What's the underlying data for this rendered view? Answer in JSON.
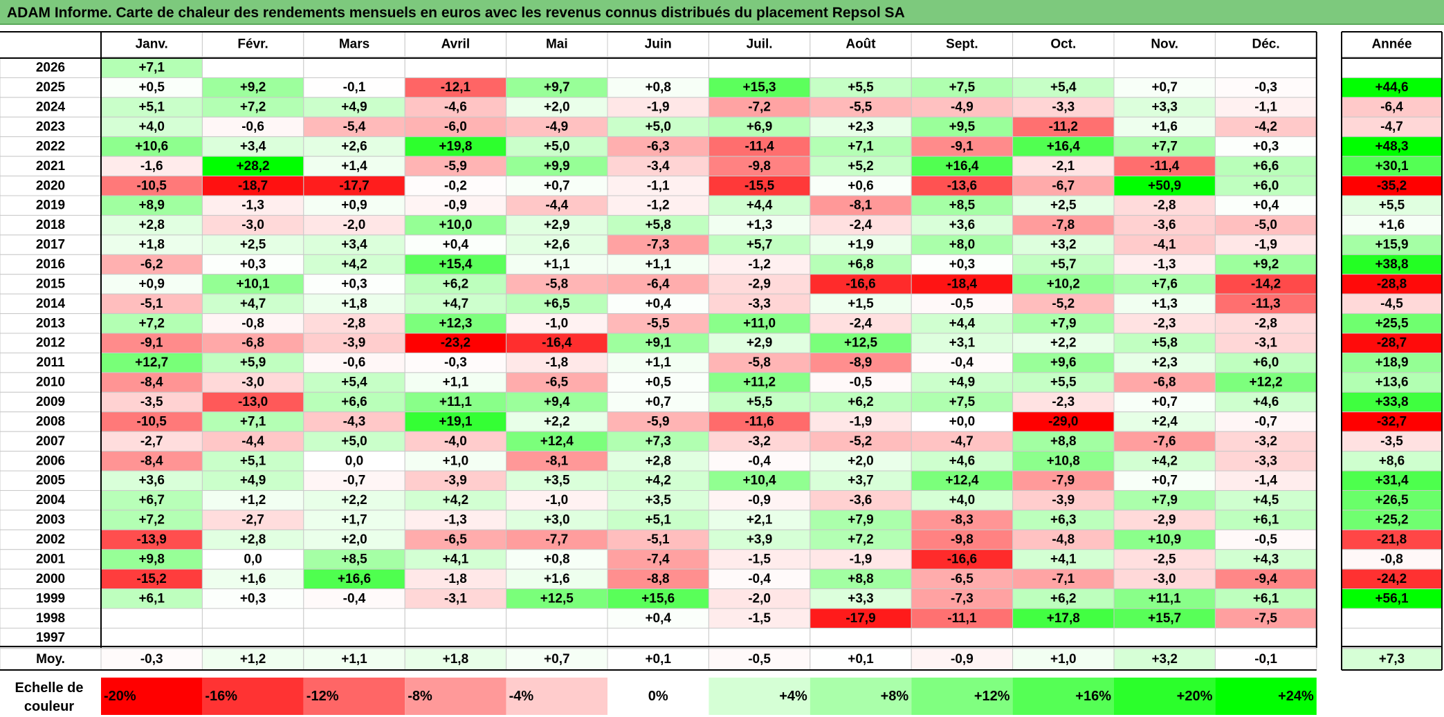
{
  "title": "ADAM Informe. Carte de chaleur des rendements mensuels en euros avec les revenus connus distribués du placement Repsol SA",
  "colors": {
    "positive_max": "#00ff00",
    "negative_max": "#ff0000",
    "neutral": "#ffffff",
    "title_bar": "#7dc97d"
  },
  "chart_data": {
    "type": "heatmap",
    "title": "ADAM Informe. Carte de chaleur des rendements mensuels en euros avec les revenus connus distribués du placement Repsol SA",
    "columns": [
      "Janv.",
      "Févr.",
      "Mars",
      "Avril",
      "Mai",
      "Juin",
      "Juil.",
      "Août",
      "Sept.",
      "Oct.",
      "Nov.",
      "Déc."
    ],
    "annual_header": "Année",
    "rows": [
      {
        "year": "2026",
        "months": [
          "+7,1",
          "",
          "",
          "",
          "",
          "",
          "",
          "",
          "",
          "",
          "",
          ""
        ],
        "annual": ""
      },
      {
        "year": "2025",
        "months": [
          "+0,5",
          "+9,2",
          "-0,1",
          "-12,1",
          "+9,7",
          "+0,8",
          "+15,3",
          "+5,5",
          "+7,5",
          "+5,4",
          "+0,7",
          "-0,3"
        ],
        "annual": "+44,6"
      },
      {
        "year": "2024",
        "months": [
          "+5,1",
          "+7,2",
          "+4,9",
          "-4,6",
          "+2,0",
          "-1,9",
          "-7,2",
          "-5,5",
          "-4,9",
          "-3,3",
          "+3,3",
          "-1,1"
        ],
        "annual": "-6,4"
      },
      {
        "year": "2023",
        "months": [
          "+4,0",
          "-0,6",
          "-5,4",
          "-6,0",
          "-4,9",
          "+5,0",
          "+6,9",
          "+2,3",
          "+9,5",
          "-11,2",
          "+1,6",
          "-4,2"
        ],
        "annual": "-4,7"
      },
      {
        "year": "2022",
        "months": [
          "+10,6",
          "+3,4",
          "+2,6",
          "+19,8",
          "+5,0",
          "-6,3",
          "-11,4",
          "+7,1",
          "-9,1",
          "+16,4",
          "+7,7",
          "+0,3"
        ],
        "annual": "+48,3"
      },
      {
        "year": "2021",
        "months": [
          "-1,6",
          "+28,2",
          "+1,4",
          "-5,9",
          "+9,9",
          "-3,4",
          "-9,8",
          "+5,2",
          "+16,4",
          "-2,1",
          "-11,4",
          "+6,6"
        ],
        "annual": "+30,1"
      },
      {
        "year": "2020",
        "months": [
          "-10,5",
          "-18,7",
          "-17,7",
          "-0,2",
          "+0,7",
          "-1,1",
          "-15,5",
          "+0,6",
          "-13,6",
          "-6,7",
          "+50,9",
          "+6,0"
        ],
        "annual": "-35,2"
      },
      {
        "year": "2019",
        "months": [
          "+8,9",
          "-1,3",
          "+0,9",
          "-0,9",
          "-4,4",
          "-1,2",
          "+4,4",
          "-8,1",
          "+8,5",
          "+2,5",
          "-2,8",
          "+0,4"
        ],
        "annual": "+5,5"
      },
      {
        "year": "2018",
        "months": [
          "+2,8",
          "-3,0",
          "-2,0",
          "+10,0",
          "+2,9",
          "+5,8",
          "+1,3",
          "-2,4",
          "+3,6",
          "-7,8",
          "-3,6",
          "-5,0"
        ],
        "annual": "+1,6"
      },
      {
        "year": "2017",
        "months": [
          "+1,8",
          "+2,5",
          "+3,4",
          "+0,4",
          "+2,6",
          "-7,3",
          "+5,7",
          "+1,9",
          "+8,0",
          "+3,2",
          "-4,1",
          "-1,9"
        ],
        "annual": "+15,9"
      },
      {
        "year": "2016",
        "months": [
          "-6,2",
          "+0,3",
          "+4,2",
          "+15,4",
          "+1,1",
          "+1,1",
          "-1,2",
          "+6,8",
          "+0,3",
          "+5,7",
          "-1,3",
          "+9,2"
        ],
        "annual": "+38,8"
      },
      {
        "year": "2015",
        "months": [
          "+0,9",
          "+10,1",
          "+0,3",
          "+6,2",
          "-5,8",
          "-6,4",
          "-2,9",
          "-16,6",
          "-18,4",
          "+10,2",
          "+7,6",
          "-14,2"
        ],
        "annual": "-28,8"
      },
      {
        "year": "2014",
        "months": [
          "-5,1",
          "+4,7",
          "+1,8",
          "+4,7",
          "+6,5",
          "+0,4",
          "-3,3",
          "+1,5",
          "-0,5",
          "-5,2",
          "+1,3",
          "-11,3"
        ],
        "annual": "-4,5"
      },
      {
        "year": "2013",
        "months": [
          "+7,2",
          "-0,8",
          "-2,8",
          "+12,3",
          "-1,0",
          "-5,5",
          "+11,0",
          "-2,4",
          "+4,4",
          "+7,9",
          "-2,3",
          "-2,8"
        ],
        "annual": "+25,5"
      },
      {
        "year": "2012",
        "months": [
          "-9,1",
          "-6,8",
          "-3,9",
          "-23,2",
          "-16,4",
          "+9,1",
          "+2,9",
          "+12,5",
          "+3,1",
          "+2,2",
          "+5,8",
          "-3,1"
        ],
        "annual": "-28,7"
      },
      {
        "year": "2011",
        "months": [
          "+12,7",
          "+5,9",
          "-0,6",
          "-0,3",
          "-1,8",
          "+1,1",
          "-5,8",
          "-8,9",
          "-0,4",
          "+9,6",
          "+2,3",
          "+6,0"
        ],
        "annual": "+18,9"
      },
      {
        "year": "2010",
        "months": [
          "-8,4",
          "-3,0",
          "+5,4",
          "+1,1",
          "-6,5",
          "+0,5",
          "+11,2",
          "-0,5",
          "+4,9",
          "+5,5",
          "-6,8",
          "+12,2"
        ],
        "annual": "+13,6"
      },
      {
        "year": "2009",
        "months": [
          "-3,5",
          "-13,0",
          "+6,6",
          "+11,1",
          "+9,4",
          "+0,7",
          "+5,5",
          "+6,2",
          "+7,5",
          "-2,3",
          "+0,7",
          "+4,6"
        ],
        "annual": "+33,8"
      },
      {
        "year": "2008",
        "months": [
          "-10,5",
          "+7,1",
          "-4,3",
          "+19,1",
          "+2,2",
          "-5,9",
          "-11,6",
          "-1,9",
          "+0,0",
          "-29,0",
          "+2,4",
          "-0,7"
        ],
        "annual": "-32,7"
      },
      {
        "year": "2007",
        "months": [
          "-2,7",
          "-4,4",
          "+5,0",
          "-4,0",
          "+12,4",
          "+7,3",
          "-3,2",
          "-5,2",
          "-4,7",
          "+8,8",
          "-7,6",
          "-3,2"
        ],
        "annual": "-3,5"
      },
      {
        "year": "2006",
        "months": [
          "-8,4",
          "+5,1",
          "0,0",
          "+1,0",
          "-8,1",
          "+2,8",
          "-0,4",
          "+2,0",
          "+4,6",
          "+10,8",
          "+4,2",
          "-3,3"
        ],
        "annual": "+8,6"
      },
      {
        "year": "2005",
        "months": [
          "+3,6",
          "+4,9",
          "-0,7",
          "-3,9",
          "+3,5",
          "+4,2",
          "+10,4",
          "+3,7",
          "+12,4",
          "-7,9",
          "+0,7",
          "-1,4"
        ],
        "annual": "+31,4"
      },
      {
        "year": "2004",
        "months": [
          "+6,7",
          "+1,2",
          "+2,2",
          "+4,2",
          "-1,0",
          "+3,5",
          "-0,9",
          "-3,6",
          "+4,0",
          "-3,9",
          "+7,9",
          "+4,5"
        ],
        "annual": "+26,5"
      },
      {
        "year": "2003",
        "months": [
          "+7,2",
          "-2,7",
          "+1,7",
          "-1,3",
          "+3,0",
          "+5,1",
          "+2,1",
          "+7,9",
          "-8,3",
          "+6,3",
          "-2,9",
          "+6,1"
        ],
        "annual": "+25,2"
      },
      {
        "year": "2002",
        "months": [
          "-13,9",
          "+2,8",
          "+2,0",
          "-6,5",
          "-7,7",
          "-5,1",
          "+3,9",
          "+7,2",
          "-9,8",
          "-4,8",
          "+10,9",
          "-0,5"
        ],
        "annual": "-21,8"
      },
      {
        "year": "2001",
        "months": [
          "+9,8",
          "0,0",
          "+8,5",
          "+4,1",
          "+0,8",
          "-7,4",
          "-1,5",
          "-1,9",
          "-16,6",
          "+4,1",
          "-2,5",
          "+4,3"
        ],
        "annual": "-0,8"
      },
      {
        "year": "2000",
        "months": [
          "-15,2",
          "+1,6",
          "+16,6",
          "-1,8",
          "+1,6",
          "-8,8",
          "-0,4",
          "+8,8",
          "-6,5",
          "-7,1",
          "-3,0",
          "-9,4"
        ],
        "annual": "-24,2"
      },
      {
        "year": "1999",
        "months": [
          "+6,1",
          "+0,3",
          "-0,4",
          "-3,1",
          "+12,5",
          "+15,6",
          "-2,0",
          "+3,3",
          "-7,3",
          "+6,2",
          "+11,1",
          "+6,1"
        ],
        "annual": "+56,1"
      },
      {
        "year": "1998",
        "months": [
          "",
          "",
          "",
          "",
          "",
          "+0,4",
          "-1,5",
          "-17,9",
          "-11,1",
          "+17,8",
          "+15,7",
          "-7,5"
        ],
        "annual": ""
      },
      {
        "year": "1997",
        "months": [
          "",
          "",
          "",
          "",
          "",
          "",
          "",
          "",
          "",
          "",
          "",
          ""
        ],
        "annual": ""
      }
    ],
    "average": {
      "label": "Moy.",
      "months": [
        "-0,3",
        "+1,2",
        "+1,1",
        "+1,8",
        "+0,7",
        "+0,1",
        "-0,5",
        "+0,1",
        "-0,9",
        "+1,0",
        "+3,2",
        "-0,1"
      ],
      "annual": "+7,3"
    },
    "scale": {
      "label_line1": "Echelle de",
      "label_line2": "couleur",
      "steps": [
        {
          "label": "-20%",
          "value": -20
        },
        {
          "label": "-16%",
          "value": -16
        },
        {
          "label": "-12%",
          "value": -12
        },
        {
          "label": "-8%",
          "value": -8
        },
        {
          "label": "-4%",
          "value": -4
        },
        {
          "label": "0%",
          "value": 0
        },
        {
          "label": "+4%",
          "value": 4
        },
        {
          "label": "+8%",
          "value": 8
        },
        {
          "label": "+12%",
          "value": 12
        },
        {
          "label": "+16%",
          "value": 16
        },
        {
          "label": "+20%",
          "value": 20
        },
        {
          "label": "+24%",
          "value": 24
        }
      ]
    }
  }
}
